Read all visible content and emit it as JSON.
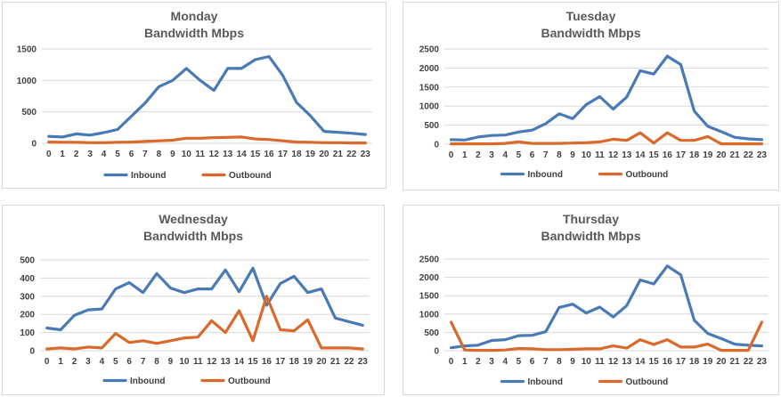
{
  "colors": {
    "inbound": "#4a7ab5",
    "outbound": "#d96a2b"
  },
  "chart_data": [
    {
      "type": "line",
      "title": "Monday",
      "subtitle": "Bandwidth Mbps",
      "categories": [
        "0",
        "1",
        "2",
        "3",
        "4",
        "5",
        "6",
        "7",
        "8",
        "9",
        "10",
        "11",
        "12",
        "13",
        "14",
        "15",
        "16",
        "17",
        "18",
        "19",
        "20",
        "21",
        "22",
        "23"
      ],
      "ylim": [
        0,
        1500
      ],
      "yticks": [
        0,
        500,
        1000,
        1500
      ],
      "grid": true,
      "legend": "bottom",
      "series": [
        {
          "name": "Inbound",
          "values": [
            110,
            100,
            150,
            130,
            170,
            220,
            430,
            640,
            900,
            1000,
            1190,
            1000,
            840,
            1190,
            1190,
            1330,
            1380,
            1080,
            650,
            440,
            190,
            175,
            160,
            140
          ]
        },
        {
          "name": "Outbound",
          "values": [
            20,
            15,
            15,
            10,
            10,
            15,
            20,
            30,
            40,
            50,
            80,
            80,
            90,
            95,
            100,
            70,
            60,
            40,
            20,
            15,
            10,
            10,
            5,
            5
          ]
        }
      ]
    },
    {
      "type": "line",
      "title": "Tuesday",
      "subtitle": "Bandwidth Mbps",
      "categories": [
        "0",
        "1",
        "2",
        "3",
        "4",
        "5",
        "6",
        "7",
        "8",
        "9",
        "10",
        "11",
        "12",
        "13",
        "14",
        "15",
        "16",
        "17",
        "18",
        "19",
        "20",
        "21",
        "22",
        "23"
      ],
      "ylim": [
        0,
        2500
      ],
      "yticks": [
        0,
        500,
        1000,
        1500,
        2000,
        2500
      ],
      "grid": true,
      "legend": "bottom",
      "series": [
        {
          "name": "Inbound",
          "values": [
            120,
            110,
            190,
            230,
            240,
            320,
            370,
            540,
            800,
            670,
            1040,
            1250,
            920,
            1240,
            1930,
            1840,
            2310,
            2090,
            870,
            470,
            330,
            180,
            140,
            120
          ]
        },
        {
          "name": "Outbound",
          "values": [
            10,
            10,
            10,
            10,
            20,
            60,
            20,
            20,
            20,
            30,
            40,
            60,
            130,
            100,
            300,
            30,
            300,
            100,
            100,
            200,
            10,
            10,
            10,
            10
          ]
        }
      ]
    },
    {
      "type": "line",
      "title": "Wednesday",
      "subtitle": "Bandwidth Mbps",
      "categories": [
        "0",
        "1",
        "2",
        "3",
        "4",
        "5",
        "6",
        "7",
        "8",
        "9",
        "10",
        "11",
        "12",
        "13",
        "14",
        "15",
        "16",
        "17",
        "18",
        "19",
        "20",
        "21",
        "22",
        "23"
      ],
      "ylim": [
        0,
        500
      ],
      "yticks": [
        0,
        100,
        200,
        300,
        400,
        500
      ],
      "grid": true,
      "legend": "bottom",
      "series": [
        {
          "name": "Inbound",
          "values": [
            125,
            115,
            195,
            225,
            230,
            340,
            375,
            320,
            425,
            345,
            320,
            340,
            340,
            445,
            325,
            455,
            250,
            370,
            410,
            320,
            340,
            180,
            160,
            140
          ]
        },
        {
          "name": "Outbound",
          "values": [
            10,
            15,
            10,
            20,
            15,
            95,
            45,
            55,
            40,
            55,
            70,
            75,
            165,
            100,
            220,
            55,
            300,
            115,
            110,
            170,
            15,
            15,
            15,
            10
          ]
        }
      ]
    },
    {
      "type": "line",
      "title": "Thursday",
      "subtitle": "Bandwidth Mbps",
      "categories": [
        "0",
        "1",
        "2",
        "3",
        "4",
        "5",
        "6",
        "7",
        "8",
        "9",
        "10",
        "11",
        "12",
        "13",
        "14",
        "15",
        "16",
        "17",
        "18",
        "19",
        "20",
        "21",
        "22",
        "23"
      ],
      "ylim": [
        0,
        2500
      ],
      "yticks": [
        0,
        500,
        1000,
        1500,
        2000,
        2500
      ],
      "grid": true,
      "legend": "bottom",
      "series": [
        {
          "name": "Inbound",
          "values": [
            80,
            130,
            150,
            280,
            300,
            410,
            420,
            520,
            1180,
            1270,
            1030,
            1190,
            920,
            1230,
            1930,
            1820,
            2310,
            2070,
            830,
            470,
            330,
            180,
            150,
            130
          ]
        },
        {
          "name": "Outbound",
          "values": [
            780,
            20,
            10,
            10,
            20,
            60,
            50,
            30,
            30,
            40,
            50,
            50,
            130,
            70,
            300,
            170,
            300,
            100,
            100,
            180,
            10,
            10,
            10,
            780
          ]
        }
      ]
    }
  ]
}
